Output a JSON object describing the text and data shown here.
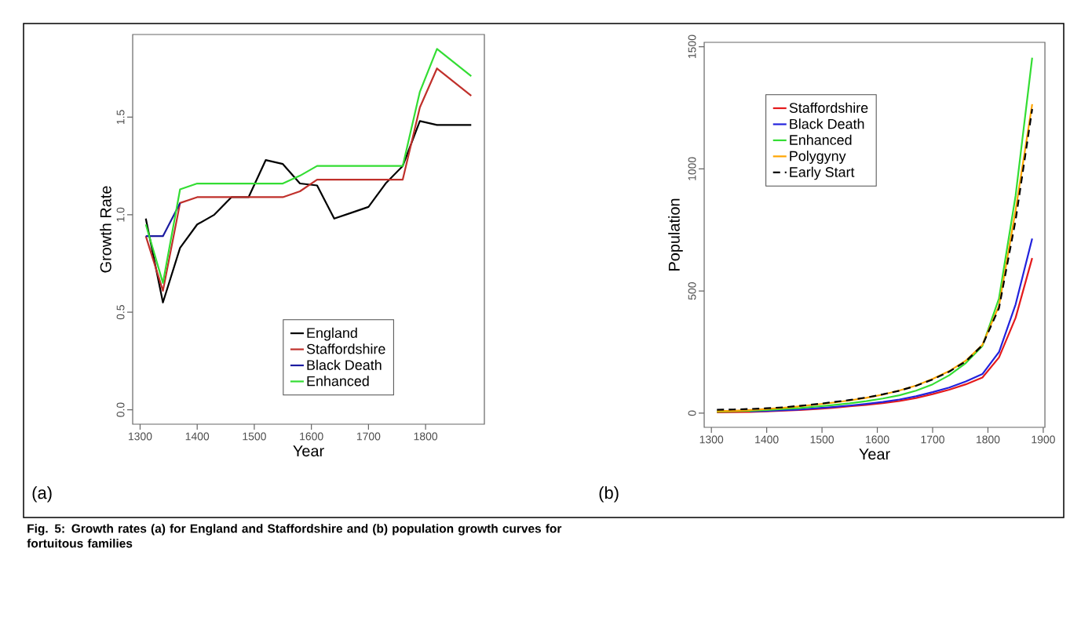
{
  "chart_data": [
    {
      "type": "line",
      "xlabel": "Year",
      "ylabel": "Growth Rate",
      "annotations": [
        "(a)",
        "Fig. 5: Growth rates (a) for England and Staffordshire and (b) population growth curves for fortuitous families"
      ],
      "x": [
        1310,
        1340,
        1370,
        1400,
        1430,
        1460,
        1490,
        1520,
        1550,
        1580,
        1610,
        1640,
        1670,
        1700,
        1730,
        1760,
        1790,
        1820,
        1880
      ],
      "xlim": [
        1287,
        1903
      ],
      "xticks": [
        1300,
        1400,
        1500,
        1600,
        1700,
        1800
      ],
      "ylim": [
        -0.074,
        1.924
      ],
      "yticks": [
        {
          "value": 0,
          "label": "0.0"
        },
        {
          "value": 0.5,
          "label": "0.5"
        },
        {
          "value": 1,
          "label": "1.0"
        },
        {
          "value": 1.5,
          "label": "1.5"
        }
      ],
      "legend": "bottom right",
      "series": [
        {
          "name": "England",
          "color": "#000000",
          "values": [
            0.98,
            0.55,
            0.83,
            0.95,
            1.0,
            1.09,
            1.09,
            1.28,
            1.26,
            1.16,
            1.15,
            0.98,
            1.01,
            1.04,
            1.16,
            1.25,
            1.48,
            1.46,
            1.46
          ]
        },
        {
          "name": "Staffordshire",
          "color": "#c0302b",
          "values": [
            0.89,
            0.61,
            1.06,
            1.09,
            1.09,
            1.09,
            1.09,
            1.09,
            1.09,
            1.12,
            1.18,
            1.18,
            1.18,
            1.18,
            1.18,
            1.18,
            1.55,
            1.75,
            1.61
          ]
        },
        {
          "name": "Black Death",
          "color": "#1c1ca0",
          "values": [
            0.89,
            0.89,
            1.06,
            null,
            null,
            null,
            null,
            null,
            null,
            null,
            null,
            null,
            null,
            null,
            null,
            null,
            null,
            null,
            null
          ]
        },
        {
          "name": "Enhanced",
          "color": "#33dd33",
          "values": [
            0.95,
            0.65,
            1.13,
            1.16,
            1.16,
            1.16,
            1.16,
            1.16,
            1.16,
            1.2,
            1.25,
            1.25,
            1.25,
            1.25,
            1.25,
            1.25,
            1.63,
            1.85,
            1.71
          ]
        }
      ]
    },
    {
      "type": "line",
      "xlabel": "Year",
      "ylabel": "Population",
      "annotations": [
        "(b)"
      ],
      "x": [
        1310,
        1340,
        1370,
        1400,
        1430,
        1460,
        1490,
        1520,
        1550,
        1580,
        1610,
        1640,
        1670,
        1700,
        1730,
        1760,
        1790,
        1820,
        1850,
        1880
      ],
      "xlim": [
        1287,
        1903
      ],
      "xticks": [
        1300,
        1400,
        1500,
        1600,
        1700,
        1800,
        1900
      ],
      "ylim": [
        -58,
        1518
      ],
      "yticks": [
        0,
        500,
        1000,
        1500
      ],
      "legend": "top left",
      "series": [
        {
          "name": "Staffordshire",
          "color": "#e41a1c",
          "values": [
            3,
            4,
            5,
            7,
            10,
            13,
            17,
            22,
            28,
            34,
            41,
            50,
            62,
            78,
            96,
            118,
            146,
            228,
            390,
            635
          ]
        },
        {
          "name": "Black Death",
          "color": "#2222dd",
          "values": [
            null,
            null,
            7,
            9,
            12,
            15,
            20,
            25,
            31,
            38,
            46,
            56,
            69,
            86,
            105,
            130,
            160,
            250,
            445,
            715
          ]
        },
        {
          "name": "Enhanced",
          "color": "#33dd33",
          "values": [
            6,
            8,
            10,
            13,
            17,
            21,
            27,
            33,
            40,
            49,
            60,
            73,
            92,
            118,
            155,
            205,
            275,
            470,
            890,
            1455
          ]
        },
        {
          "name": "Polygyny",
          "color": "#ffa500",
          "values": [
            8,
            10,
            13,
            17,
            22,
            28,
            35,
            43,
            52,
            63,
            76,
            93,
            113,
            140,
            172,
            215,
            280,
            440,
            830,
            1265
          ]
        },
        {
          "name": "Early Start",
          "color": "#000000",
          "line_style": "dashed",
          "values": [
            14,
            15,
            17,
            20,
            24,
            30,
            37,
            45,
            54,
            64,
            77,
            92,
            112,
            138,
            170,
            212,
            278,
            430,
            790,
            1245
          ]
        }
      ]
    }
  ]
}
